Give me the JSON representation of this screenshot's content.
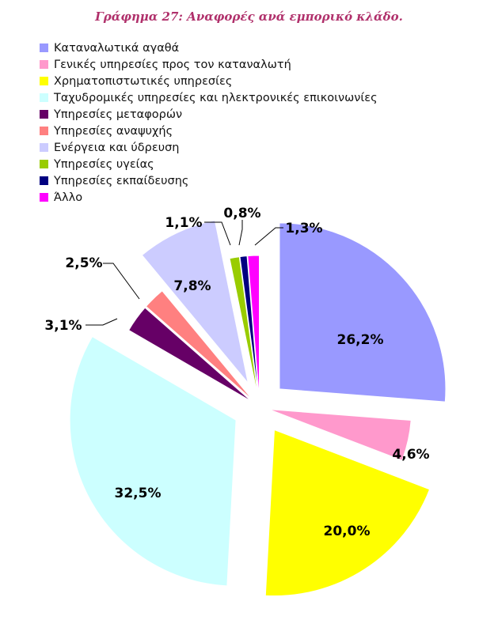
{
  "title": "Γράφημα 27: Αναφορές ανά εμπορικό κλάδο.",
  "chart_data": {
    "type": "pie",
    "title": "Γράφημα 27: Αναφορές ανά εμπορικό κλάδο.",
    "legend_position": "top-left",
    "slices": [
      {
        "label": "Καταναλωτικά αγαθά",
        "value": 26.2,
        "display": "26,2%",
        "color": "#9999ff"
      },
      {
        "label": "Γενικές υπηρεσίες προς τον καταναλωτή",
        "value": 4.6,
        "display": "4,6%",
        "color": "#ff99cc"
      },
      {
        "label": "Χρηματοπιστωτικές υπηρεσίες",
        "value": 20.0,
        "display": "20,0%",
        "color": "#ffff00"
      },
      {
        "label": "Ταχυδρομικές υπηρεσίες και ηλεκτρονικές επικοινωνίες",
        "value": 32.5,
        "display": "32,5%",
        "color": "#ccffff"
      },
      {
        "label": "Υπηρεσίες μεταφορών",
        "value": 3.1,
        "display": "3,1%",
        "color": "#660066"
      },
      {
        "label": "Υπηρεσίες αναψυχής",
        "value": 2.5,
        "display": "2,5%",
        "color": "#ff8080"
      },
      {
        "label": "Ενέργεια και ύδρευση",
        "value": 7.8,
        "display": "7,8%",
        "color": "#ccccff"
      },
      {
        "label": "Υπηρεσίες υγείας",
        "value": 1.1,
        "display": "1,1%",
        "color": "#99cc00"
      },
      {
        "label": "Υπηρεσίες εκπαίδευσης",
        "value": 0.8,
        "display": "0,8%",
        "color": "#000080"
      },
      {
        "label": "Άλλο",
        "value": 1.3,
        "display": "1,3%",
        "color": "#ff00ff"
      }
    ]
  }
}
